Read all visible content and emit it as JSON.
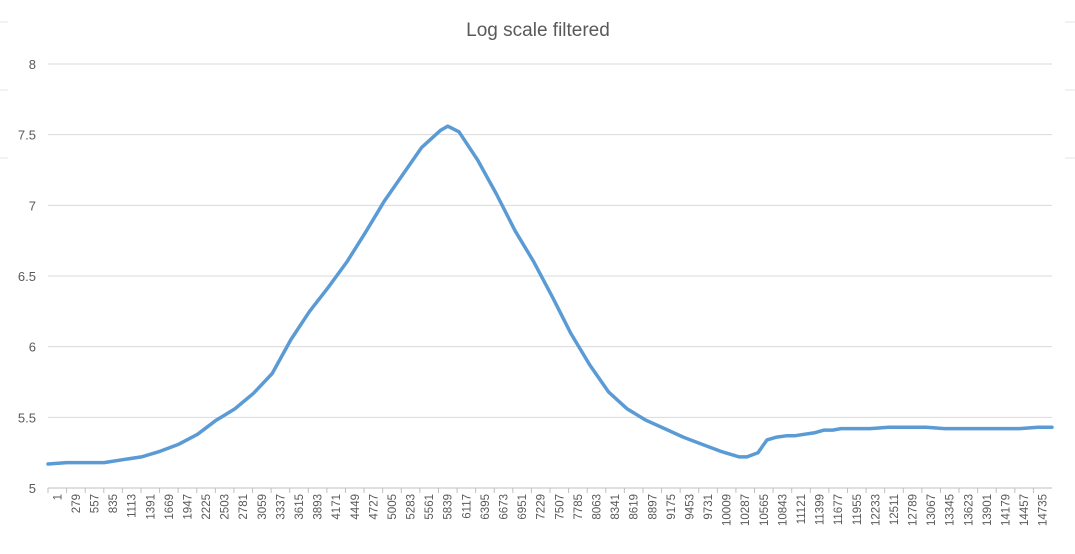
{
  "chart_data": {
    "type": "line",
    "title": "Log scale filtered",
    "xlabel": "",
    "ylabel": "",
    "ylim": [
      5,
      8
    ],
    "yticks": [
      "5",
      "5.5",
      "6",
      "6.5",
      "7",
      "7.5",
      "8"
    ],
    "xlim": [
      1,
      14940
    ],
    "x_tick_labels": [
      "1",
      "279",
      "557",
      "835",
      "1113",
      "1391",
      "1669",
      "1947",
      "2225",
      "2503",
      "2781",
      "3059",
      "3337",
      "3615",
      "3893",
      "4171",
      "4449",
      "4727",
      "5005",
      "5283",
      "5561",
      "5839",
      "6117",
      "6395",
      "6673",
      "6951",
      "7229",
      "7507",
      "7785",
      "8063",
      "8341",
      "8619",
      "8897",
      "9175",
      "9453",
      "9731",
      "10009",
      "10287",
      "10565",
      "10843",
      "11121",
      "11399",
      "11677",
      "11955",
      "12233",
      "12511",
      "12789",
      "13067",
      "13345",
      "13623",
      "13901",
      "14179",
      "14457",
      "14735"
    ],
    "grid": true,
    "legend": "none",
    "color": "#5b9bd5",
    "series": [
      {
        "x": [
          1,
          279,
          557,
          835,
          1113,
          1391,
          1669,
          1947,
          2225,
          2503,
          2781,
          3059,
          3337,
          3615,
          3893,
          4171,
          4449,
          4727,
          5005,
          5283,
          5561,
          5839,
          5950,
          6117,
          6395,
          6673,
          6951,
          7229,
          7507,
          7785,
          8063,
          8341,
          8619,
          8897,
          9175,
          9453,
          9731,
          10009,
          10287,
          10400,
          10565,
          10700,
          10843,
          11000,
          11121,
          11250,
          11399,
          11550,
          11677,
          11800,
          11955,
          12233,
          12511,
          12789,
          13067,
          13345,
          13623,
          13901,
          14179,
          14457,
          14735,
          14940
        ],
        "y": [
          5.17,
          5.18,
          5.18,
          5.18,
          5.2,
          5.22,
          5.26,
          5.31,
          5.38,
          5.48,
          5.56,
          5.67,
          5.81,
          6.05,
          6.25,
          6.42,
          6.6,
          6.81,
          7.03,
          7.22,
          7.41,
          7.53,
          7.56,
          7.52,
          7.32,
          7.08,
          6.82,
          6.6,
          6.35,
          6.09,
          5.87,
          5.68,
          5.56,
          5.48,
          5.42,
          5.36,
          5.31,
          5.26,
          5.22,
          5.22,
          5.25,
          5.34,
          5.36,
          5.37,
          5.37,
          5.38,
          5.39,
          5.41,
          5.41,
          5.42,
          5.42,
          5.42,
          5.43,
          5.43,
          5.43,
          5.42,
          5.42,
          5.42,
          5.42,
          5.42,
          5.43,
          5.43
        ]
      }
    ]
  }
}
